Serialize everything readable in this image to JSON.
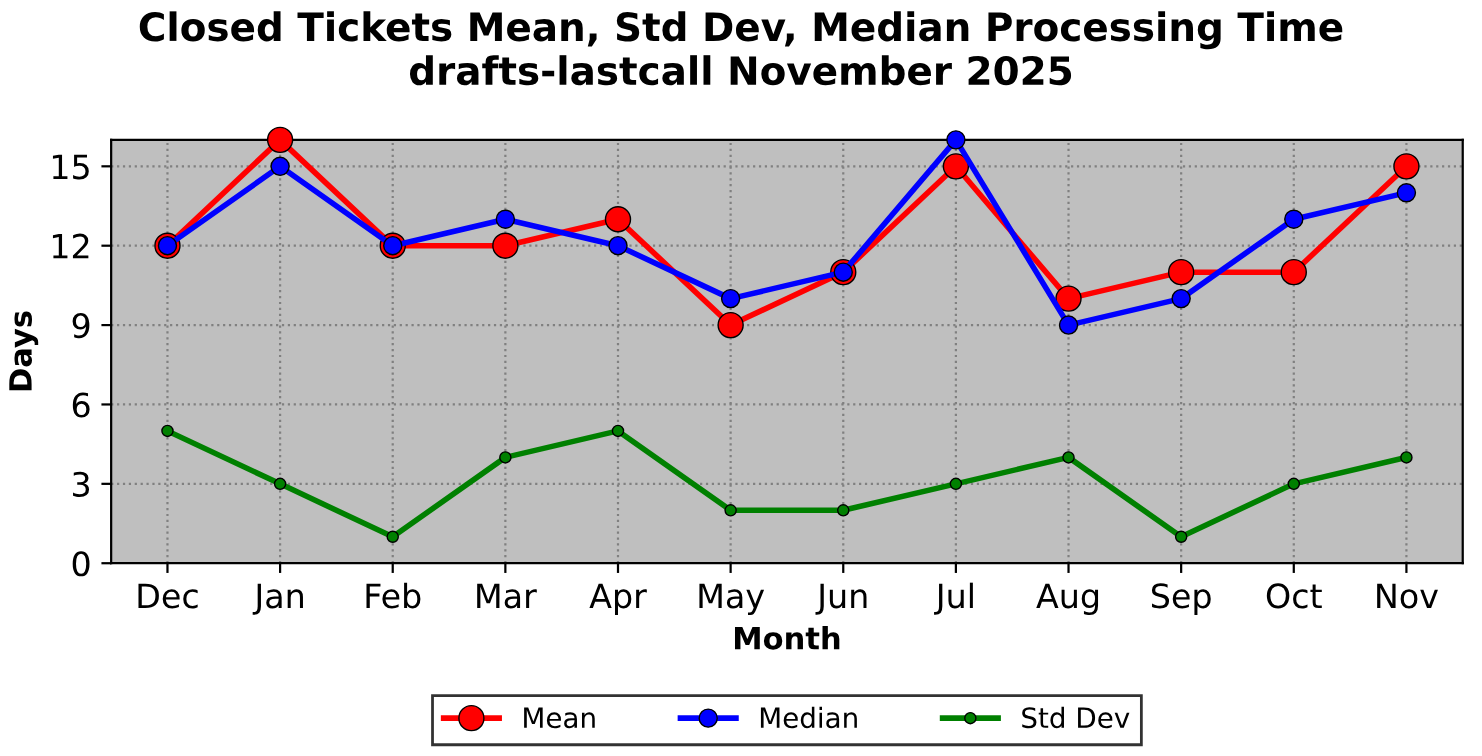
{
  "chart_data": {
    "type": "line",
    "title": "Closed Tickets Mean, Std Dev, Median Processing Time\ndrafts-lastcall November 2025",
    "xlabel": "Month",
    "ylabel": "Days",
    "categories": [
      "Dec",
      "Jan",
      "Feb",
      "Mar",
      "Apr",
      "May",
      "Jun",
      "Jul",
      "Aug",
      "Sep",
      "Oct",
      "Nov"
    ],
    "series": [
      {
        "name": "Mean",
        "color": "#ff0000",
        "values": [
          12,
          16,
          12,
          12,
          13,
          9,
          11,
          15,
          10,
          11,
          11,
          15
        ]
      },
      {
        "name": "Median",
        "color": "#0000ff",
        "values": [
          12,
          15,
          12,
          13,
          12,
          10,
          11,
          16,
          9,
          10,
          13,
          14
        ]
      },
      {
        "name": "Std Dev",
        "color": "#008000",
        "values": [
          5,
          3,
          1,
          4,
          5,
          2,
          2,
          3,
          4,
          1,
          3,
          4
        ]
      }
    ],
    "ylim": [
      0,
      16
    ],
    "yticks": [
      0,
      3,
      6,
      9,
      12,
      15
    ],
    "grid": true,
    "legend": "bottom",
    "marker": "circle",
    "line_style": "solid"
  }
}
